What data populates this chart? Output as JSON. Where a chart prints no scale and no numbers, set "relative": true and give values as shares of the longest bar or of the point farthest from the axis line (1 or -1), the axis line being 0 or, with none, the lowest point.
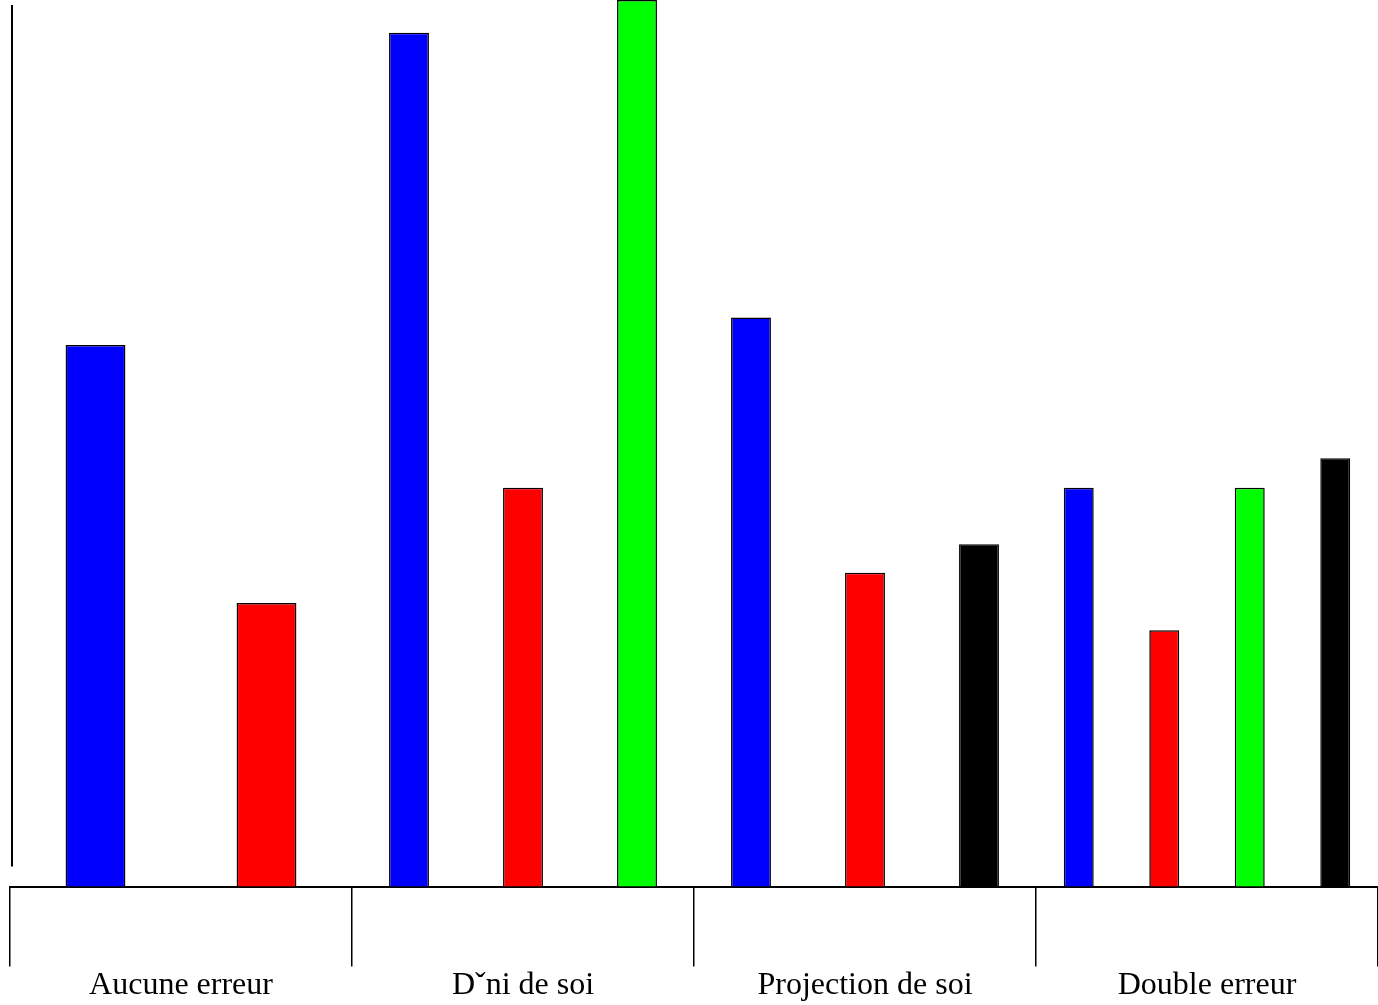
{
  "chart_data": {
    "type": "bar",
    "relative": true,
    "grid": false,
    "legend": false,
    "tick_labels": "x",
    "categories": [
      "Aucune erreur",
      "Dˇni de soi",
      "Projection de soi",
      "Double erreur"
    ],
    "series": [
      {
        "color": "#0000ff",
        "values": [
          0.611,
          0.963,
          0.642,
          0.45
        ]
      },
      {
        "color": "#ff0000",
        "values": [
          0.32,
          0.45,
          0.354,
          0.289
        ]
      },
      {
        "color": "#00ff00",
        "values": [
          null,
          1,
          null,
          0.45
        ]
      },
      {
        "color": "#000000",
        "values": [
          null,
          null,
          0.386,
          0.483
        ]
      }
    ]
  }
}
